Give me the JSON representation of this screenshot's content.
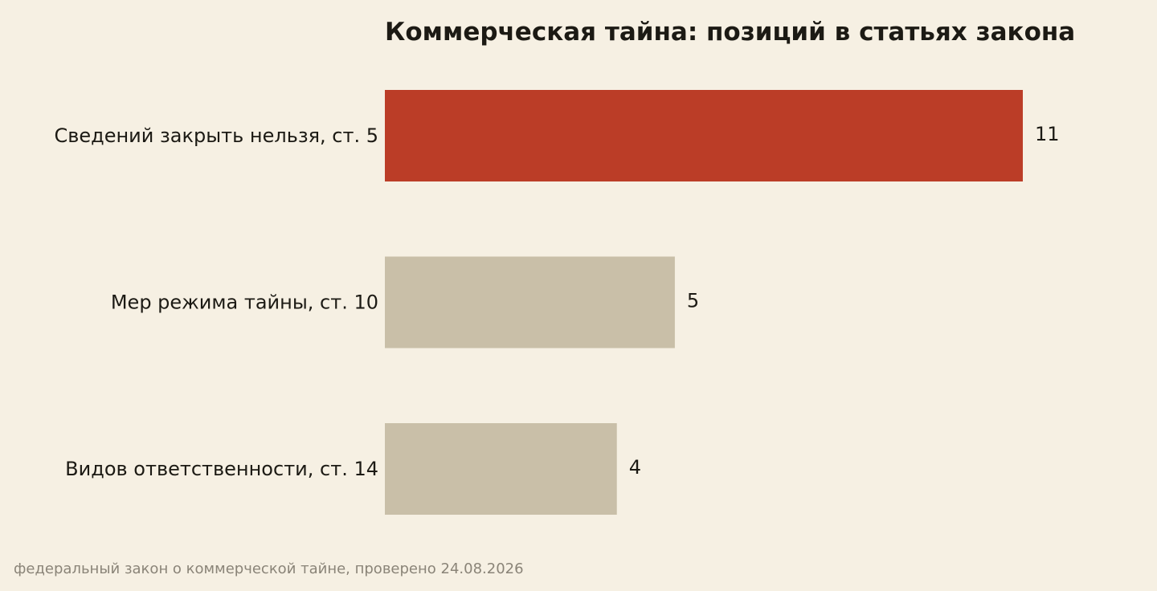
{
  "chart_data": {
    "type": "bar",
    "orientation": "horizontal",
    "title": "Коммерческая тайна: позиций в статьях закона",
    "categories": [
      "Сведений закрыть нельзя, ст. 5",
      "Мер режима тайны, ст. 10",
      "Видов ответственности, ст. 14"
    ],
    "values": [
      11,
      5,
      4
    ],
    "value_labels": [
      "11",
      "5",
      "4"
    ],
    "bar_colors": [
      "#bb3d27",
      "#c9bfa8",
      "#c9bfa8"
    ],
    "highlight_color": "#bb3d27",
    "base_color": "#c9bfa8",
    "xlim": [
      0,
      11
    ],
    "grid": false,
    "legend": "none"
  },
  "footer": {
    "source": "федеральный закон о коммерческой тайне, проверено 24.08.2026"
  },
  "colors": {
    "background": "#f6f0e3",
    "text": "#1c1a14",
    "muted_text": "#8a8478"
  }
}
